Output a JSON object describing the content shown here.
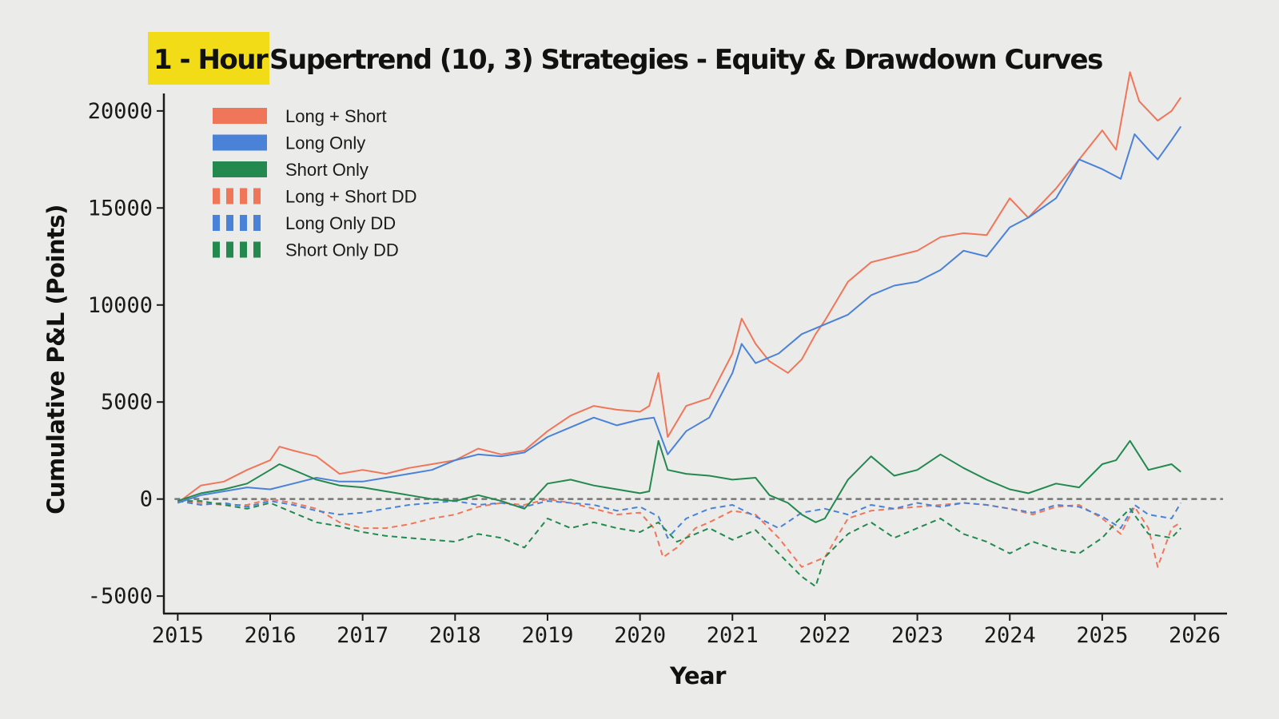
{
  "title": {
    "highlight": "1 - Hour",
    "rest": "Supertrend (10, 3) Strategies - Equity & Drawdown Curves",
    "highlight_color": "#f2dc18"
  },
  "chart_data": {
    "type": "line",
    "xlabel": "Year",
    "ylabel": "Cumulative P&L (Points)",
    "xlim": [
      2014.85,
      2026.35
    ],
    "ylim": [
      -5900,
      20900
    ],
    "x_ticks": [
      2015,
      2016,
      2017,
      2018,
      2019,
      2020,
      2021,
      2022,
      2023,
      2024,
      2025,
      2026
    ],
    "x_tick_labels": [
      "2015",
      "2016",
      "2017",
      "2018",
      "2019",
      "2020",
      "2021",
      "2022",
      "2023",
      "2024",
      "2025",
      "2026"
    ],
    "y_ticks": [
      -5000,
      0,
      5000,
      10000,
      15000,
      20000
    ],
    "y_tick_labels": [
      "-5000",
      "0",
      "5000",
      "10000",
      "15000",
      "20000"
    ],
    "zero_line": true,
    "grid": false,
    "legend_position": "top-left",
    "series": [
      {
        "name": "Long + Short",
        "style": "solid",
        "color": "#f0765a",
        "x": [
          2015.0,
          2015.25,
          2015.5,
          2015.75,
          2016.0,
          2016.1,
          2016.25,
          2016.5,
          2016.75,
          2017.0,
          2017.25,
          2017.5,
          2017.75,
          2018.0,
          2018.25,
          2018.5,
          2018.75,
          2019.0,
          2019.25,
          2019.5,
          2019.75,
          2020.0,
          2020.1,
          2020.2,
          2020.3,
          2020.5,
          2020.75,
          2021.0,
          2021.1,
          2021.25,
          2021.4,
          2021.6,
          2021.75,
          2021.9,
          2022.0,
          2022.25,
          2022.5,
          2022.75,
          2023.0,
          2023.25,
          2023.5,
          2023.75,
          2024.0,
          2024.2,
          2024.5,
          2024.75,
          2025.0,
          2025.15,
          2025.3,
          2025.4,
          2025.6,
          2025.75,
          2025.85
        ],
        "values": [
          -200,
          700,
          900,
          1500,
          2000,
          2700,
          2500,
          2200,
          1300,
          1500,
          1300,
          1600,
          1800,
          2000,
          2600,
          2300,
          2500,
          3500,
          4300,
          4800,
          4600,
          4500,
          4800,
          6500,
          3200,
          4800,
          5200,
          7500,
          9300,
          8000,
          7100,
          6500,
          7200,
          8500,
          9200,
          11200,
          12200,
          12500,
          12800,
          13500,
          13700,
          13600,
          15500,
          14500,
          16000,
          17500,
          19000,
          18000,
          22000,
          20500,
          19500,
          20000,
          20700
        ]
      },
      {
        "name": "Long Only",
        "style": "solid",
        "color": "#4a82d8",
        "x": [
          2015.0,
          2015.25,
          2015.5,
          2015.75,
          2016.0,
          2016.25,
          2016.5,
          2016.75,
          2017.0,
          2017.25,
          2017.5,
          2017.75,
          2018.0,
          2018.25,
          2018.5,
          2018.75,
          2019.0,
          2019.25,
          2019.5,
          2019.75,
          2020.0,
          2020.15,
          2020.3,
          2020.5,
          2020.75,
          2021.0,
          2021.1,
          2021.25,
          2021.5,
          2021.75,
          2022.0,
          2022.25,
          2022.5,
          2022.75,
          2023.0,
          2023.25,
          2023.5,
          2023.75,
          2024.0,
          2024.2,
          2024.5,
          2024.75,
          2025.0,
          2025.2,
          2025.35,
          2025.5,
          2025.6,
          2025.75,
          2025.85
        ],
        "values": [
          -200,
          200,
          400,
          600,
          500,
          800,
          1100,
          900,
          900,
          1100,
          1300,
          1500,
          2000,
          2300,
          2200,
          2400,
          3200,
          3700,
          4200,
          3800,
          4100,
          4200,
          2300,
          3500,
          4200,
          6500,
          8000,
          7000,
          7500,
          8500,
          9000,
          9500,
          10500,
          11000,
          11200,
          11800,
          12800,
          12500,
          14000,
          14500,
          15500,
          17500,
          17000,
          16500,
          18800,
          18000,
          17500,
          18500,
          19200
        ]
      },
      {
        "name": "Short Only",
        "style": "solid",
        "color": "#23894e",
        "x": [
          2015.0,
          2015.25,
          2015.5,
          2015.75,
          2016.0,
          2016.1,
          2016.25,
          2016.5,
          2016.75,
          2017.0,
          2017.25,
          2017.5,
          2017.75,
          2018.0,
          2018.25,
          2018.5,
          2018.75,
          2019.0,
          2019.25,
          2019.5,
          2019.75,
          2020.0,
          2020.1,
          2020.2,
          2020.3,
          2020.5,
          2020.75,
          2021.0,
          2021.25,
          2021.4,
          2021.6,
          2021.75,
          2021.9,
          2022.0,
          2022.25,
          2022.5,
          2022.75,
          2023.0,
          2023.25,
          2023.5,
          2023.75,
          2024.0,
          2024.2,
          2024.5,
          2024.75,
          2025.0,
          2025.15,
          2025.3,
          2025.5,
          2025.75,
          2025.85
        ],
        "values": [
          -100,
          300,
          500,
          800,
          1500,
          1800,
          1500,
          1000,
          700,
          600,
          400,
          200,
          0,
          -100,
          200,
          -100,
          -500,
          800,
          1000,
          700,
          500,
          300,
          400,
          3000,
          1500,
          1300,
          1200,
          1000,
          1100,
          200,
          -200,
          -800,
          -1200,
          -1000,
          1000,
          2200,
          1200,
          1500,
          2300,
          1600,
          1000,
          500,
          300,
          800,
          600,
          1800,
          2000,
          3000,
          1500,
          1800,
          1400
        ]
      },
      {
        "name": "Long + Short DD",
        "style": "dashed",
        "color": "#f0765a",
        "x": [
          2015.0,
          2015.25,
          2015.5,
          2015.75,
          2016.0,
          2016.25,
          2016.5,
          2016.75,
          2017.0,
          2017.25,
          2017.5,
          2017.75,
          2018.0,
          2018.25,
          2018.5,
          2018.75,
          2019.0,
          2019.25,
          2019.5,
          2019.75,
          2020.0,
          2020.15,
          2020.25,
          2020.4,
          2020.6,
          2020.75,
          2021.0,
          2021.25,
          2021.5,
          2021.75,
          2022.0,
          2022.25,
          2022.5,
          2022.75,
          2023.0,
          2023.25,
          2023.5,
          2023.75,
          2024.0,
          2024.25,
          2024.5,
          2024.75,
          2025.0,
          2025.2,
          2025.35,
          2025.5,
          2025.6,
          2025.75,
          2025.85
        ],
        "values": [
          -100,
          -200,
          -300,
          -300,
          0,
          -200,
          -500,
          -1200,
          -1500,
          -1500,
          -1300,
          -1000,
          -800,
          -400,
          -200,
          -300,
          0,
          -200,
          -500,
          -800,
          -700,
          -1500,
          -3000,
          -2500,
          -1500,
          -1200,
          -600,
          -800,
          -2000,
          -3500,
          -3000,
          -1000,
          -600,
          -500,
          -400,
          -300,
          -200,
          -300,
          -500,
          -800,
          -400,
          -300,
          -1000,
          -1800,
          -400,
          -1500,
          -3500,
          -1500,
          -1200
        ]
      },
      {
        "name": "Long Only DD",
        "style": "dashed",
        "color": "#4a82d8",
        "x": [
          2015.0,
          2015.25,
          2015.5,
          2015.75,
          2016.0,
          2016.25,
          2016.5,
          2016.75,
          2017.0,
          2017.25,
          2017.5,
          2017.75,
          2018.0,
          2018.25,
          2018.5,
          2018.75,
          2019.0,
          2019.25,
          2019.5,
          2019.75,
          2020.0,
          2020.2,
          2020.3,
          2020.5,
          2020.75,
          2021.0,
          2021.25,
          2021.5,
          2021.75,
          2022.0,
          2022.25,
          2022.5,
          2022.75,
          2023.0,
          2023.25,
          2023.5,
          2023.75,
          2024.0,
          2024.25,
          2024.5,
          2024.75,
          2025.0,
          2025.2,
          2025.35,
          2025.5,
          2025.75,
          2025.85
        ],
        "values": [
          -100,
          -300,
          -200,
          -400,
          -100,
          -300,
          -600,
          -800,
          -700,
          -500,
          -300,
          -200,
          -100,
          -300,
          -200,
          -400,
          -100,
          -200,
          -300,
          -600,
          -400,
          -900,
          -2000,
          -1000,
          -500,
          -300,
          -900,
          -1500,
          -700,
          -500,
          -800,
          -300,
          -500,
          -200,
          -400,
          -200,
          -300,
          -500,
          -700,
          -300,
          -400,
          -900,
          -1500,
          -300,
          -800,
          -1000,
          -200
        ]
      },
      {
        "name": "Short Only DD",
        "style": "dashed",
        "color": "#23894e",
        "x": [
          2015.0,
          2015.25,
          2015.5,
          2015.75,
          2016.0,
          2016.25,
          2016.5,
          2016.75,
          2017.0,
          2017.25,
          2017.5,
          2017.75,
          2018.0,
          2018.25,
          2018.5,
          2018.75,
          2019.0,
          2019.25,
          2019.5,
          2019.75,
          2020.0,
          2020.2,
          2020.4,
          2020.6,
          2020.75,
          2021.0,
          2021.25,
          2021.5,
          2021.75,
          2021.9,
          2022.0,
          2022.25,
          2022.5,
          2022.75,
          2023.0,
          2023.25,
          2023.5,
          2023.75,
          2024.0,
          2024.25,
          2024.5,
          2024.75,
          2025.0,
          2025.15,
          2025.3,
          2025.5,
          2025.75,
          2025.85
        ],
        "values": [
          -100,
          -100,
          -300,
          -500,
          -200,
          -700,
          -1200,
          -1400,
          -1700,
          -1900,
          -2000,
          -2100,
          -2200,
          -1800,
          -2000,
          -2500,
          -1000,
          -1500,
          -1200,
          -1500,
          -1700,
          -1200,
          -2200,
          -1800,
          -1500,
          -2100,
          -1600,
          -2800,
          -4000,
          -4500,
          -3000,
          -1800,
          -1200,
          -2000,
          -1500,
          -1000,
          -1800,
          -2200,
          -2800,
          -2200,
          -2600,
          -2800,
          -2000,
          -1200,
          -500,
          -1800,
          -2000,
          -1500
        ]
      }
    ]
  }
}
